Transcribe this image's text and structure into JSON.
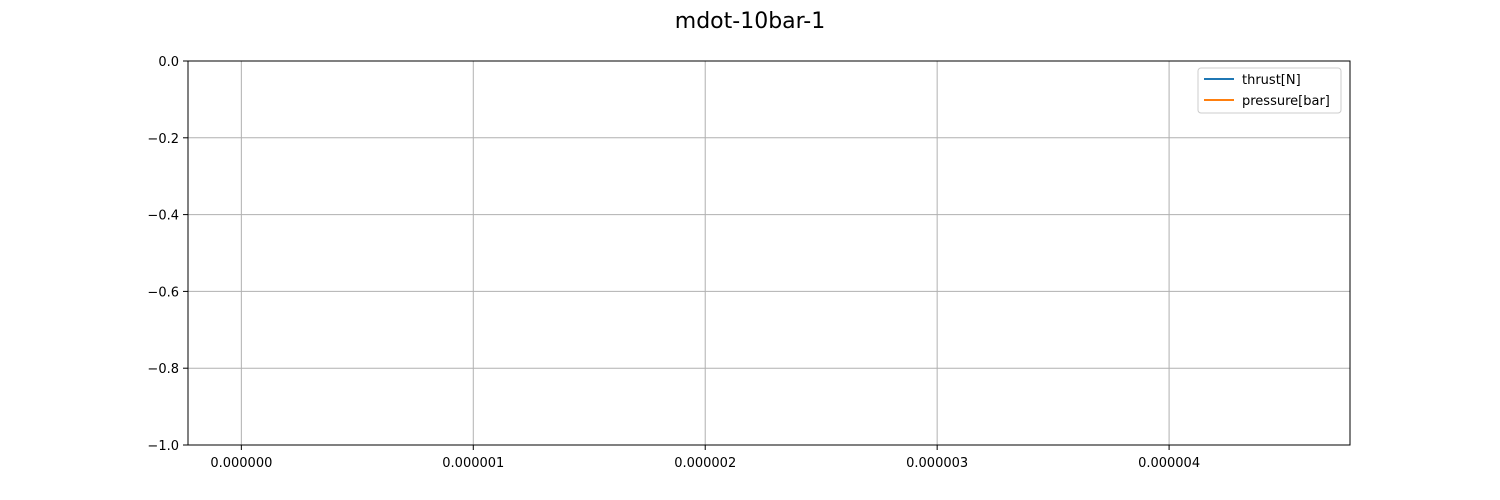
{
  "chart_data": {
    "type": "line",
    "title": "mdot-10bar-1",
    "xlabel": "",
    "ylabel": "",
    "xlim": [
      -2.3e-07,
      4.78e-06
    ],
    "ylim": [
      -1.0,
      0.0
    ],
    "x_ticks": [
      0,
      1e-06,
      2e-06,
      3e-06,
      4e-06
    ],
    "x_tick_labels": [
      "0.000000",
      "0.000001",
      "0.000002",
      "0.000003",
      "0.000004"
    ],
    "y_ticks": [
      0.0,
      -0.2,
      -0.4,
      -0.6,
      -0.8,
      -1.0
    ],
    "y_tick_labels": [
      "0.0",
      "−0.2",
      "−0.4",
      "−0.6",
      "−0.8",
      "−1.0"
    ],
    "grid": true,
    "legend_position": "upper right",
    "series": [
      {
        "name": "thrust[N]",
        "color": "#1f77b4",
        "x": [],
        "y": []
      },
      {
        "name": "pressure[bar]",
        "color": "#ff7f0e",
        "x": [],
        "y": []
      }
    ]
  }
}
